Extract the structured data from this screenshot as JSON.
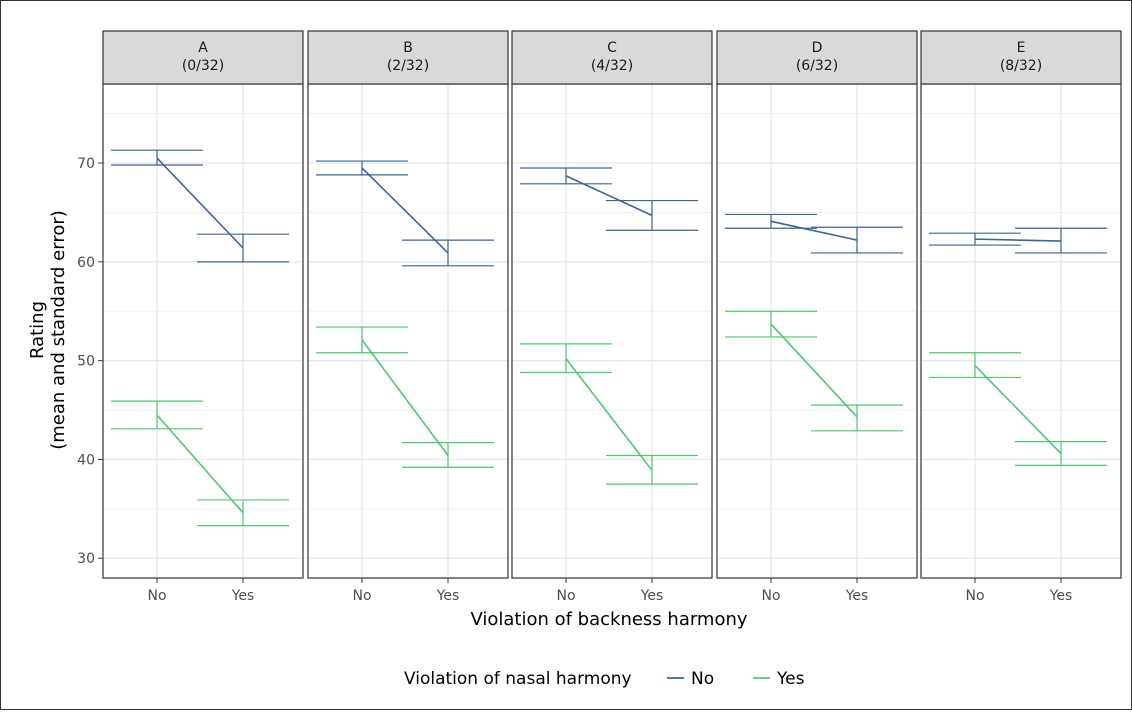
{
  "chart_data": {
    "type": "line",
    "xlabel": "Violation of backness harmony",
    "ylabel_line1": "Rating",
    "ylabel_line2": "(mean and standard error)",
    "ylim": [
      28,
      78
    ],
    "y_ticks": [
      30,
      40,
      50,
      60,
      70
    ],
    "categories": [
      "No",
      "Yes"
    ],
    "legend": {
      "title": "Violation of nasal harmony",
      "position": "bottom",
      "entries": [
        {
          "name": "No",
          "color": "#3B6497"
        },
        {
          "name": "Yes",
          "color": "#4CC870"
        }
      ]
    },
    "grid": true,
    "panels": [
      {
        "label_line1": "A",
        "label_line2": "(0/32)",
        "series": [
          {
            "name": "No",
            "values": [
              70.5,
              61.4
            ],
            "se_low": [
              69.8,
              60.0
            ],
            "se_high": [
              71.3,
              62.8
            ]
          },
          {
            "name": "Yes",
            "values": [
              44.5,
              34.6
            ],
            "se_low": [
              43.1,
              33.3
            ],
            "se_high": [
              45.9,
              35.9
            ]
          }
        ]
      },
      {
        "label_line1": "B",
        "label_line2": "(2/32)",
        "series": [
          {
            "name": "No",
            "values": [
              69.5,
              60.9
            ],
            "se_low": [
              68.8,
              59.6
            ],
            "se_high": [
              70.2,
              62.2
            ]
          },
          {
            "name": "Yes",
            "values": [
              52.1,
              40.4
            ],
            "se_low": [
              50.8,
              39.2
            ],
            "se_high": [
              53.4,
              41.7
            ]
          }
        ]
      },
      {
        "label_line1": "C",
        "label_line2": "(4/32)",
        "series": [
          {
            "name": "No",
            "values": [
              68.7,
              64.7
            ],
            "se_low": [
              67.9,
              63.2
            ],
            "se_high": [
              69.5,
              66.2
            ]
          },
          {
            "name": "Yes",
            "values": [
              50.2,
              38.9
            ],
            "se_low": [
              48.8,
              37.5
            ],
            "se_high": [
              51.7,
              40.4
            ]
          }
        ]
      },
      {
        "label_line1": "D",
        "label_line2": "(6/32)",
        "series": [
          {
            "name": "No",
            "values": [
              64.1,
              62.2
            ],
            "se_low": [
              63.4,
              60.9
            ],
            "se_high": [
              64.8,
              63.5
            ]
          },
          {
            "name": "Yes",
            "values": [
              53.7,
              44.3
            ],
            "se_low": [
              52.4,
              42.9
            ],
            "se_high": [
              55.0,
              45.5
            ]
          }
        ]
      },
      {
        "label_line1": "E",
        "label_line2": "(8/32)",
        "series": [
          {
            "name": "No",
            "values": [
              62.3,
              62.1
            ],
            "se_low": [
              61.7,
              60.9
            ],
            "se_high": [
              62.9,
              63.4
            ]
          },
          {
            "name": "Yes",
            "values": [
              49.5,
              40.6
            ],
            "se_low": [
              48.3,
              39.4
            ],
            "se_high": [
              50.8,
              41.8
            ]
          }
        ]
      }
    ]
  }
}
